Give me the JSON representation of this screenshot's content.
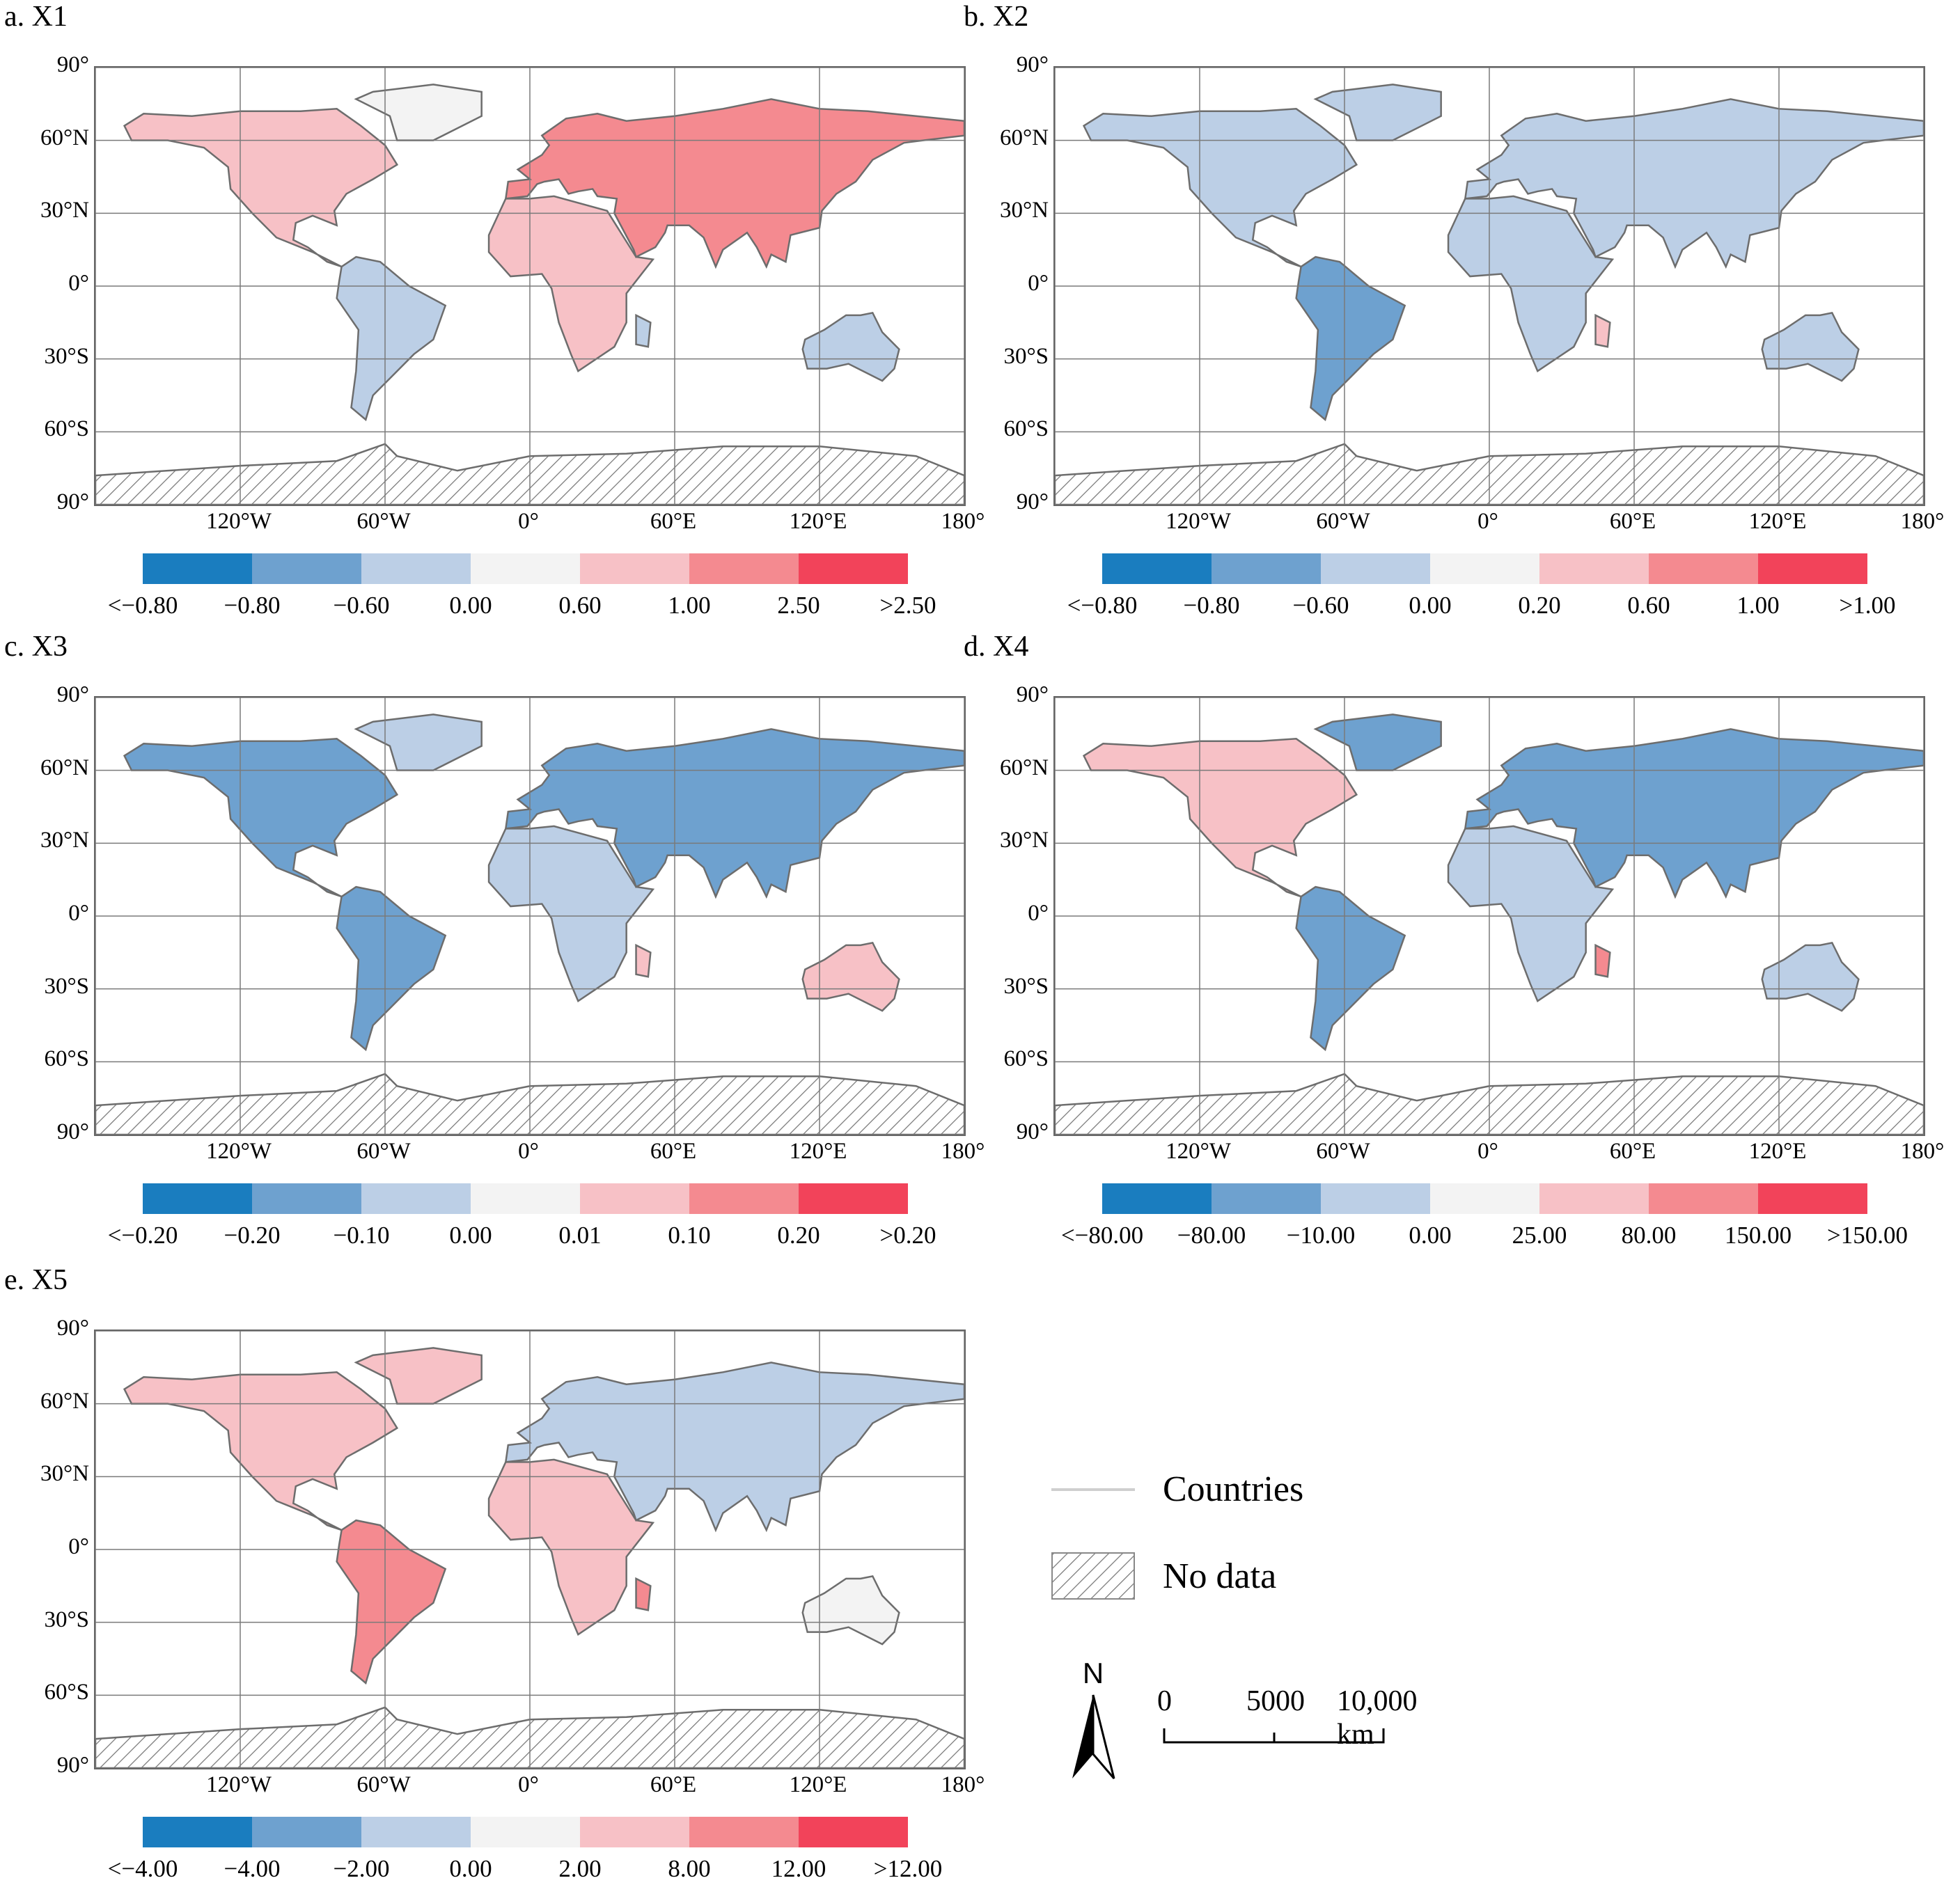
{
  "panels": [
    {
      "id": "a",
      "title": "a. X1",
      "legend_labels": [
        "<−0.80",
        "−0.80",
        "−0.60",
        "0.00",
        "0.60",
        "1.00",
        "2.50",
        ">2.50"
      ]
    },
    {
      "id": "b",
      "title": "b. X2",
      "legend_labels": [
        "<−0.80",
        "−0.80",
        "−0.60",
        "0.00",
        "0.20",
        "0.60",
        "1.00",
        ">1.00"
      ]
    },
    {
      "id": "c",
      "title": "c. X3",
      "legend_labels": [
        "<−0.20",
        "−0.20",
        "−0.10",
        "0.00",
        "0.01",
        "0.10",
        "0.20",
        ">0.20"
      ]
    },
    {
      "id": "d",
      "title": "d. X4",
      "legend_labels": [
        "<−80.00",
        "−80.00",
        "−10.00",
        "0.00",
        "25.00",
        "80.00",
        "150.00",
        ">150.00"
      ]
    },
    {
      "id": "e",
      "title": "e. X5",
      "legend_labels": [
        "<−4.00",
        "−4.00",
        "−2.00",
        "0.00",
        "2.00",
        "8.00",
        "12.00",
        ">12.00"
      ]
    }
  ],
  "lat_labels": [
    "90°",
    "60°N",
    "30°N",
    "0°",
    "30°S",
    "60°S",
    "90°"
  ],
  "lon_labels": [
    "120°W",
    "60°W",
    "0°",
    "60°E",
    "120°E",
    "180°"
  ],
  "color_classes": [
    "#1a7dbf",
    "#6ea1cf",
    "#bccfe6",
    "#f3f3f3",
    "#f7c1c6",
    "#f48a90",
    "#f2435a"
  ],
  "legend": {
    "countries_label": "Countries",
    "no_data_label": "No data",
    "north_label": "N",
    "scale_labels": [
      "0",
      "5000",
      "10,000 km"
    ]
  }
}
